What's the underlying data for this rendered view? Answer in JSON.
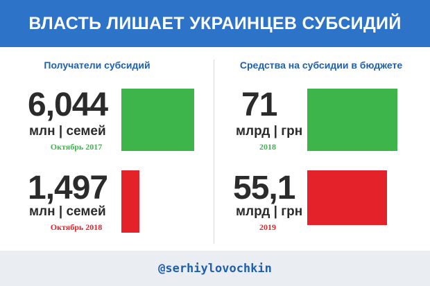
{
  "header": {
    "title": "ВЛАСТЬ ЛИШАЕТ УКРАИНЦЕВ СУБСИДИЙ"
  },
  "footer": {
    "handle": "@serhiylovochkin"
  },
  "colors": {
    "header_bg": "#2d73c7",
    "green": "#3db54a",
    "red": "#e4222a",
    "footer_bg": "#eaeef3"
  },
  "chart_data": [
    {
      "type": "bar",
      "title": "Получатели субсидий",
      "unit": "млн | семей",
      "categories": [
        "Октябрь 2017",
        "Октябрь 2018"
      ],
      "values": [
        6.044,
        1.497
      ],
      "value_labels": [
        "6,044",
        "1,497"
      ],
      "colors": [
        "#3db54a",
        "#e4222a"
      ]
    },
    {
      "type": "bar",
      "title": "Средства на субсидии в бюджете",
      "unit": "млрд | грн",
      "categories": [
        "2018",
        "2019"
      ],
      "values": [
        71,
        55.1
      ],
      "value_labels": [
        "71",
        "55,1"
      ],
      "colors": [
        "#3db54a",
        "#e4222a"
      ]
    }
  ]
}
